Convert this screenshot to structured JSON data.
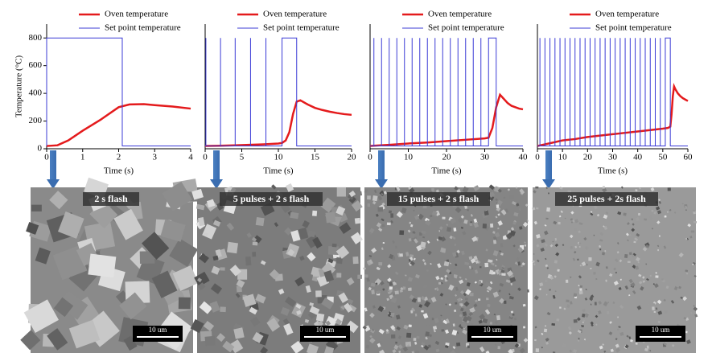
{
  "chart_data": [
    {
      "type": "line",
      "ylabel": "Temperature (°C)",
      "xlabel": "Time (s)",
      "xlim": [
        0,
        4
      ],
      "xticks": [
        0,
        1,
        2,
        3,
        4
      ],
      "ylim": [
        0,
        900
      ],
      "yticks": [
        0,
        200,
        400,
        600,
        800
      ],
      "series": [
        {
          "name": "Oven temperature",
          "color": "#e41a1c",
          "x": [
            0,
            0.3,
            0.6,
            1,
            1.5,
            2,
            2.3,
            2.7,
            3,
            3.5,
            4
          ],
          "values": [
            20,
            25,
            60,
            130,
            210,
            300,
            320,
            322,
            315,
            305,
            290
          ]
        },
        {
          "name": "Set point temperature",
          "color": "#3b3bd6",
          "x": [
            0,
            0,
            2.1,
            2.1,
            4
          ],
          "values": [
            20,
            800,
            800,
            20,
            20
          ]
        }
      ]
    },
    {
      "type": "line",
      "xlabel": "Time (s)",
      "xlim": [
        0,
        20
      ],
      "xticks": [
        0,
        5,
        10,
        15,
        20
      ],
      "ylim": [
        0,
        900
      ],
      "series": [
        {
          "name": "Oven temperature",
          "color": "#e41a1c",
          "x": [
            0,
            2,
            4,
            6,
            8,
            10,
            10.5,
            11,
            11.5,
            12,
            12.5,
            13,
            14,
            15,
            16,
            17,
            18,
            19,
            20
          ],
          "values": [
            20,
            22,
            25,
            28,
            32,
            38,
            42,
            60,
            120,
            250,
            340,
            350,
            320,
            295,
            280,
            268,
            258,
            250,
            245
          ]
        },
        {
          "name": "Set point temperature",
          "color": "#3b3bd6",
          "x": [
            0,
            0.1,
            0.1,
            0.1,
            2.1,
            2.1,
            2.1,
            4.1,
            4.1,
            4.1,
            6.2,
            6.2,
            6.2,
            8.3,
            8.3,
            8.3,
            10.5,
            10.5,
            12.5,
            12.5,
            20
          ],
          "values": [
            20,
            20,
            800,
            20,
            20,
            800,
            20,
            20,
            800,
            20,
            20,
            800,
            20,
            20,
            800,
            20,
            20,
            800,
            800,
            20,
            20
          ]
        }
      ]
    },
    {
      "type": "line",
      "xlabel": "Time (s)",
      "xlim": [
        0,
        40
      ],
      "xticks": [
        0,
        10,
        20,
        30,
        40
      ],
      "ylim": [
        0,
        900
      ],
      "series": [
        {
          "name": "Oven temperature",
          "color": "#e41a1c",
          "x": [
            0,
            5,
            10,
            15,
            20,
            25,
            30,
            31,
            32,
            33,
            34,
            35,
            36,
            37,
            38,
            39,
            40
          ],
          "values": [
            20,
            28,
            38,
            45,
            55,
            65,
            75,
            80,
            150,
            300,
            390,
            360,
            330,
            310,
            300,
            290,
            285
          ]
        },
        {
          "name": "Set point temperature",
          "color": "#3b3bd6",
          "x": [
            0,
            1,
            1,
            1,
            3,
            3,
            3,
            5,
            5,
            5,
            7,
            7,
            7,
            9,
            9,
            9,
            11,
            11,
            11,
            13,
            13,
            13,
            15,
            15,
            15,
            17,
            17,
            17,
            19,
            19,
            19,
            21,
            21,
            21,
            23,
            23,
            23,
            25,
            25,
            25,
            27,
            27,
            27,
            29,
            29,
            29,
            31,
            31,
            33,
            33,
            40
          ],
          "values": [
            20,
            20,
            800,
            20,
            20,
            800,
            20,
            20,
            800,
            20,
            20,
            800,
            20,
            20,
            800,
            20,
            20,
            800,
            20,
            20,
            800,
            20,
            20,
            800,
            20,
            20,
            800,
            20,
            20,
            800,
            20,
            20,
            800,
            20,
            20,
            800,
            20,
            20,
            800,
            20,
            20,
            800,
            20,
            20,
            800,
            20,
            20,
            800,
            800,
            20,
            20
          ]
        }
      ]
    },
    {
      "type": "line",
      "xlabel": "Time (s)",
      "xlim": [
        0,
        60
      ],
      "xticks": [
        0,
        10,
        20,
        30,
        40,
        50,
        60
      ],
      "ylim": [
        0,
        900
      ],
      "series": [
        {
          "name": "Oven temperature",
          "color": "#e41a1c",
          "x": [
            0,
            5,
            10,
            15,
            20,
            25,
            30,
            35,
            40,
            45,
            50,
            52,
            53,
            53.5,
            54,
            54.5,
            55,
            56,
            57,
            58,
            59,
            60
          ],
          "values": [
            20,
            40,
            60,
            70,
            85,
            95,
            105,
            115,
            125,
            135,
            145,
            150,
            160,
            250,
            380,
            450,
            430,
            400,
            380,
            365,
            355,
            345
          ]
        },
        {
          "name": "Set point temperature",
          "color": "#3b3bd6",
          "x": [
            0,
            1,
            1,
            1,
            3,
            3,
            3,
            5,
            5,
            5,
            7,
            7,
            7,
            9,
            9,
            9,
            11,
            11,
            11,
            13,
            13,
            13,
            15,
            15,
            15,
            17,
            17,
            17,
            19,
            19,
            19,
            21,
            21,
            21,
            23,
            23,
            23,
            25,
            25,
            25,
            27,
            27,
            27,
            29,
            29,
            29,
            31,
            31,
            31,
            33,
            33,
            33,
            35,
            35,
            35,
            37,
            37,
            37,
            39,
            39,
            39,
            41,
            41,
            41,
            43,
            43,
            43,
            45,
            45,
            45,
            47,
            47,
            47,
            49,
            49,
            49,
            51,
            51,
            53,
            53,
            60
          ],
          "values": [
            20,
            20,
            800,
            20,
            20,
            800,
            20,
            20,
            800,
            20,
            20,
            800,
            20,
            20,
            800,
            20,
            20,
            800,
            20,
            20,
            800,
            20,
            20,
            800,
            20,
            20,
            800,
            20,
            20,
            800,
            20,
            20,
            800,
            20,
            20,
            800,
            20,
            20,
            800,
            20,
            20,
            800,
            20,
            20,
            800,
            20,
            20,
            800,
            20,
            20,
            800,
            20,
            20,
            800,
            20,
            20,
            800,
            20,
            20,
            800,
            20,
            20,
            800,
            20,
            20,
            800,
            20,
            20,
            800,
            20,
            20,
            800,
            20,
            20,
            800,
            20,
            20,
            800,
            800,
            20,
            20
          ]
        }
      ]
    }
  ],
  "images": [
    {
      "caption": "2 s flash",
      "scale_bar": "10 um"
    },
    {
      "caption": "5 pulses + 2 s flash",
      "scale_bar": "10 um"
    },
    {
      "caption": "15 pulses + 2 s flash",
      "scale_bar": "10 um"
    },
    {
      "caption": "25 pulses + 2s flash",
      "scale_bar": "10 um"
    }
  ]
}
